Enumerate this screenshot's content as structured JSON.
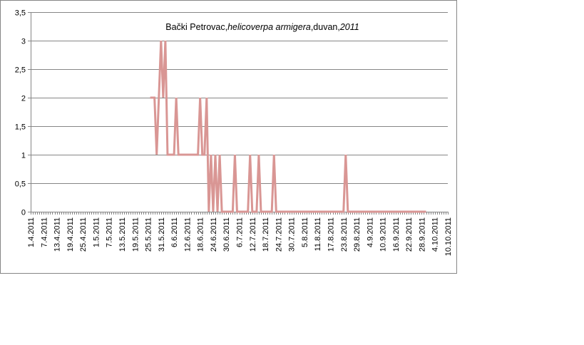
{
  "chart_data": {
    "type": "line",
    "title_parts": [
      {
        "text": "Bački Petrovac,",
        "italic": false
      },
      {
        "text": "helicoverpa armigera",
        "italic": true
      },
      {
        "text": ",duvan,",
        "italic": false
      },
      {
        "text": "2011",
        "italic": true
      }
    ],
    "xlabel": "",
    "ylabel": "",
    "ylim": [
      0,
      3.5
    ],
    "yticks": [
      "0",
      "0,5",
      "1",
      "1,5",
      "2",
      "2,5",
      "3",
      "3,5"
    ],
    "grid": true,
    "legend": "none",
    "x_start_date": "1.4.2011",
    "x_end_date": "10.10.2011",
    "xticks": [
      "1.4.2011",
      "7.4.2011",
      "13.4.2011",
      "19.4.2011",
      "25.4.2011",
      "1.5.2011",
      "7.5.2011",
      "13.5.2011",
      "19.5.2011",
      "25.5.2011",
      "31.5.2011",
      "6.6.2011",
      "12.6.2011",
      "18.6.2011",
      "24.6.2011",
      "30.6.2011",
      "6.7.2011",
      "12.7.2011",
      "18.7.2011",
      "24.7.2011",
      "30.7.2011",
      "5.8.2011",
      "11.8.2011",
      "17.8.2011",
      "23.8.2011",
      "29.8.2011",
      "4.9.2011",
      "10.9.2011",
      "16.9.2011",
      "22.9.2011",
      "28.9.2011",
      "4.10.2011",
      "10.10.2011"
    ],
    "series": [
      {
        "color": "#d99694",
        "points": [
          [
            "26.5.2011",
            2
          ],
          [
            "27.5.2011",
            2
          ],
          [
            "28.5.2011",
            2
          ],
          [
            "29.5.2011",
            1
          ],
          [
            "30.5.2011",
            2
          ],
          [
            "31.5.2011",
            3
          ],
          [
            "1.6.2011",
            2
          ],
          [
            "2.6.2011",
            3
          ],
          [
            "3.6.2011",
            1
          ],
          [
            "4.6.2011",
            1
          ],
          [
            "5.6.2011",
            1
          ],
          [
            "6.6.2011",
            1
          ],
          [
            "7.6.2011",
            2
          ],
          [
            "8.6.2011",
            1
          ],
          [
            "9.6.2011",
            1
          ],
          [
            "10.6.2011",
            1
          ],
          [
            "11.6.2011",
            1
          ],
          [
            "12.6.2011",
            1
          ],
          [
            "13.6.2011",
            1
          ],
          [
            "14.6.2011",
            1
          ],
          [
            "15.6.2011",
            1
          ],
          [
            "16.6.2011",
            1
          ],
          [
            "17.6.2011",
            1
          ],
          [
            "18.6.2011",
            2
          ],
          [
            "19.6.2011",
            1
          ],
          [
            "20.6.2011",
            1
          ],
          [
            "21.6.2011",
            2
          ],
          [
            "22.6.2011",
            0
          ],
          [
            "23.6.2011",
            1
          ],
          [
            "24.6.2011",
            0
          ],
          [
            "25.6.2011",
            1
          ],
          [
            "26.6.2011",
            0
          ],
          [
            "27.6.2011",
            1
          ],
          [
            "28.6.2011",
            0
          ],
          [
            "29.6.2011",
            0
          ],
          [
            "30.6.2011",
            0
          ],
          [
            "1.7.2011",
            0
          ],
          [
            "2.7.2011",
            0
          ],
          [
            "3.7.2011",
            0
          ],
          [
            "4.7.2011",
            1
          ],
          [
            "5.7.2011",
            0
          ],
          [
            "6.7.2011",
            0
          ],
          [
            "7.7.2011",
            0
          ],
          [
            "8.7.2011",
            0
          ],
          [
            "9.7.2011",
            0
          ],
          [
            "10.7.2011",
            0
          ],
          [
            "11.7.2011",
            1
          ],
          [
            "12.7.2011",
            0
          ],
          [
            "13.7.2011",
            0
          ],
          [
            "14.7.2011",
            0
          ],
          [
            "15.7.2011",
            1
          ],
          [
            "16.7.2011",
            0
          ],
          [
            "17.7.2011",
            0
          ],
          [
            "18.7.2011",
            0
          ],
          [
            "19.7.2011",
            0
          ],
          [
            "20.7.2011",
            0
          ],
          [
            "21.7.2011",
            0
          ],
          [
            "22.7.2011",
            1
          ],
          [
            "23.7.2011",
            0
          ],
          [
            "24.7.2011",
            0
          ],
          [
            "25.7.2011",
            0
          ],
          [
            "26.7.2011",
            0
          ],
          [
            "27.7.2011",
            0
          ],
          [
            "28.7.2011",
            0
          ],
          [
            "29.7.2011",
            0
          ],
          [
            "30.7.2011",
            0
          ],
          [
            "31.7.2011",
            0
          ],
          [
            "1.8.2011",
            0
          ],
          [
            "2.8.2011",
            0
          ],
          [
            "3.8.2011",
            0
          ],
          [
            "4.8.2011",
            0
          ],
          [
            "5.8.2011",
            0
          ],
          [
            "6.8.2011",
            0
          ],
          [
            "7.8.2011",
            0
          ],
          [
            "8.8.2011",
            0
          ],
          [
            "9.8.2011",
            0
          ],
          [
            "10.8.2011",
            0
          ],
          [
            "11.8.2011",
            0
          ],
          [
            "12.8.2011",
            0
          ],
          [
            "13.8.2011",
            0
          ],
          [
            "14.8.2011",
            0
          ],
          [
            "15.8.2011",
            0
          ],
          [
            "16.8.2011",
            0
          ],
          [
            "17.8.2011",
            0
          ],
          [
            "18.8.2011",
            0
          ],
          [
            "19.8.2011",
            0
          ],
          [
            "20.8.2011",
            0
          ],
          [
            "21.8.2011",
            0
          ],
          [
            "22.8.2011",
            0
          ],
          [
            "23.8.2011",
            0
          ],
          [
            "24.8.2011",
            1
          ],
          [
            "25.8.2011",
            0
          ],
          [
            "26.8.2011",
            0
          ],
          [
            "27.8.2011",
            0
          ],
          [
            "28.8.2011",
            0
          ],
          [
            "29.8.2011",
            0
          ],
          [
            "30.8.2011",
            0
          ],
          [
            "31.8.2011",
            0
          ],
          [
            "1.9.2011",
            0
          ],
          [
            "2.9.2011",
            0
          ],
          [
            "3.9.2011",
            0
          ],
          [
            "4.9.2011",
            0
          ],
          [
            "5.9.2011",
            0
          ],
          [
            "6.9.2011",
            0
          ],
          [
            "7.9.2011",
            0
          ],
          [
            "8.9.2011",
            0
          ],
          [
            "9.9.2011",
            0
          ],
          [
            "10.9.2011",
            0
          ],
          [
            "11.9.2011",
            0
          ],
          [
            "12.9.2011",
            0
          ],
          [
            "13.9.2011",
            0
          ],
          [
            "14.9.2011",
            0
          ],
          [
            "15.9.2011",
            0
          ],
          [
            "16.9.2011",
            0
          ],
          [
            "17.9.2011",
            0
          ],
          [
            "18.9.2011",
            0
          ],
          [
            "19.9.2011",
            0
          ],
          [
            "20.9.2011",
            0
          ],
          [
            "21.9.2011",
            0
          ],
          [
            "22.9.2011",
            0
          ],
          [
            "23.9.2011",
            0
          ],
          [
            "24.9.2011",
            0
          ],
          [
            "25.9.2011",
            0
          ],
          [
            "26.9.2011",
            0
          ],
          [
            "27.9.2011",
            0
          ],
          [
            "28.9.2011",
            0
          ],
          [
            "29.9.2011",
            0
          ],
          [
            "30.9.2011",
            0
          ]
        ]
      }
    ]
  }
}
